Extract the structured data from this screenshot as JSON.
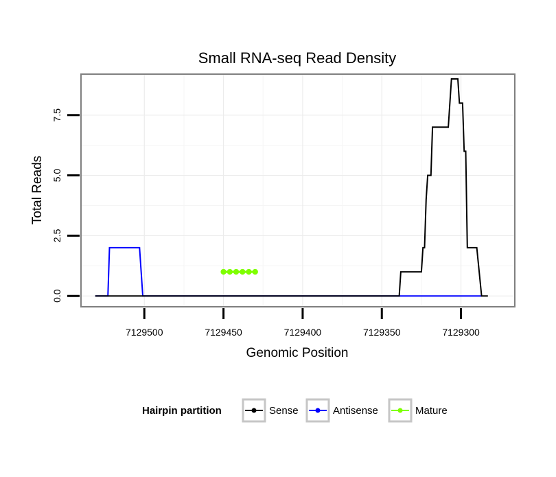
{
  "chart_data": {
    "type": "line",
    "title": "Small RNA-seq Read Density",
    "xlabel": "Genomic Position",
    "ylabel": "Total Reads",
    "x_reversed": true,
    "xlim": [
      7129540,
      7129266
    ],
    "ylim": [
      -0.45,
      9.2
    ],
    "x_ticks": [
      7129500,
      7129450,
      7129400,
      7129350,
      7129300
    ],
    "x_tick_labels": [
      "7129500",
      "7129450",
      "7129400",
      "7129350",
      "7129300"
    ],
    "y_ticks": [
      0,
      2.5,
      5,
      7.5
    ],
    "y_tick_labels": [
      "0.0",
      "2.5",
      "5.0",
      "7.5"
    ],
    "grid": true,
    "legend": {
      "title": "Hairpin partition",
      "position": "bottom",
      "entries": [
        "Sense",
        "Antisense",
        "Mature"
      ]
    },
    "colors": {
      "Sense": "#000000",
      "Antisense": "#0000ff",
      "Mature": "#7fff00",
      "panel_border": "#7f7f7f",
      "grid_major": "#ececec",
      "grid_minor": "#f5f5f5"
    },
    "series": [
      {
        "name": "Sense",
        "color": "#000000",
        "points": [
          [
            7129531,
            0
          ],
          [
            7129339,
            0
          ],
          [
            7129338,
            1
          ],
          [
            7129325,
            1
          ],
          [
            7129324,
            2
          ],
          [
            7129323,
            2
          ],
          [
            7129322,
            4
          ],
          [
            7129321,
            5
          ],
          [
            7129319,
            5
          ],
          [
            7129318,
            7
          ],
          [
            7129308,
            7
          ],
          [
            7129307,
            8
          ],
          [
            7129306,
            9
          ],
          [
            7129302,
            9
          ],
          [
            7129301,
            8
          ],
          [
            7129299,
            8
          ],
          [
            7129298,
            6
          ],
          [
            7129297,
            6
          ],
          [
            7129296,
            2
          ],
          [
            7129290,
            2
          ],
          [
            7129287,
            0
          ],
          [
            7129283,
            0
          ]
        ]
      },
      {
        "name": "Antisense",
        "color": "#0000ff",
        "points": [
          [
            7129531,
            0
          ],
          [
            7129523,
            0
          ],
          [
            7129522,
            2
          ],
          [
            7129503,
            2
          ],
          [
            7129501,
            0
          ],
          [
            7129287,
            0
          ]
        ]
      },
      {
        "name": "Mature",
        "color": "#7fff00",
        "points": [
          [
            7129450,
            1
          ],
          [
            7129446,
            1
          ],
          [
            7129442,
            1
          ],
          [
            7129438,
            1
          ],
          [
            7129434,
            1
          ],
          [
            7129430,
            1
          ]
        ]
      }
    ]
  }
}
